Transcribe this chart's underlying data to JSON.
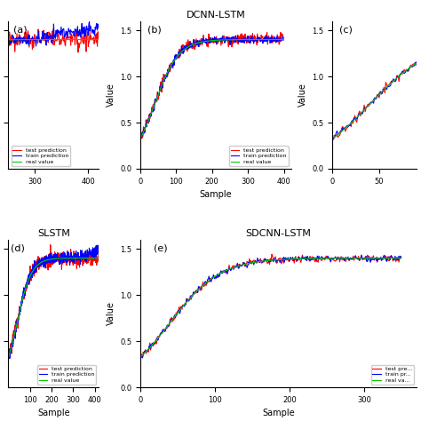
{
  "colors": {
    "test": "#ff0000",
    "train": "#0000ff",
    "real": "#00cc00"
  },
  "legend_labels": [
    "test prediction",
    "train prediction",
    "real value"
  ],
  "xlabel": "Sample",
  "ylabel": "Value"
}
